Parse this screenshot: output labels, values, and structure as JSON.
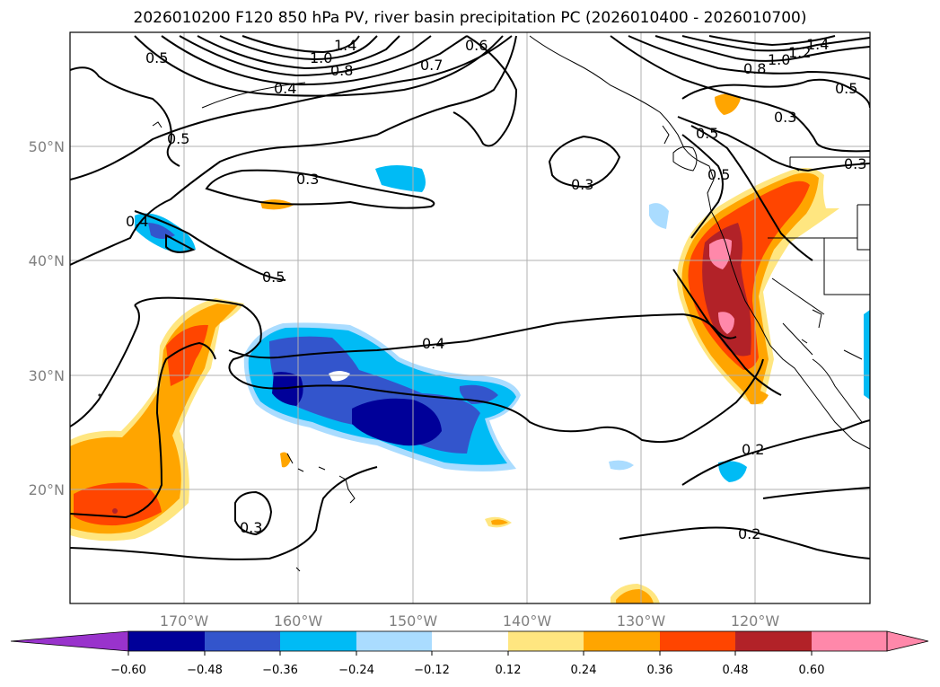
{
  "title": "2026010200 F120 850 hPa PV, river basin precipitation PC (2026010400 - 2026010700)",
  "colors": {
    "neg_060_plus": "#9933cc",
    "neg_048_060": "#000099",
    "neg_036_048": "#3355cc",
    "neg_024_036": "#00bbf5",
    "neg_012_024": "#aadcff",
    "neutral": "#ffffff",
    "pos_012_024": "#ffe680",
    "pos_024_036": "#ffa500",
    "pos_036_048": "#ff4500",
    "pos_048_060": "#b22228",
    "pos_060_plus": "#ff88aa",
    "contour": "#000000",
    "grid": "#b0b0b0"
  },
  "map": {
    "lat_labels": [
      "50°N",
      "40°N",
      "30°N",
      "20°N"
    ],
    "lon_labels": [
      "170°W",
      "160°W",
      "150°W",
      "140°W",
      "130°W",
      "120°W"
    ],
    "lat_values": [
      50,
      40,
      30,
      20
    ],
    "lon_values": [
      -170,
      -160,
      -150,
      -140,
      -130,
      -120
    ],
    "lat_range": [
      10,
      60
    ],
    "lon_range": [
      -180,
      -110
    ],
    "grid": true
  },
  "contour_labels": [
    "1.4",
    "1.2",
    "1.0",
    "0.8",
    "0.7",
    "0.6",
    "0.5",
    "0.4",
    "0.5",
    "0.3",
    "0.4",
    "0.5",
    "0.3",
    "0.4",
    "0.3",
    "0.2",
    "0.2",
    "1.4",
    "1.2",
    "1.0",
    "0.8",
    "0.5",
    "0.3",
    "0.5",
    "0.5",
    "0.3"
  ],
  "colorbar": {
    "ticks": [
      "−0.60",
      "−0.48",
      "−0.36",
      "−0.24",
      "−0.12",
      "0.12",
      "0.24",
      "0.36",
      "0.48",
      "0.60"
    ],
    "extend": "both"
  }
}
